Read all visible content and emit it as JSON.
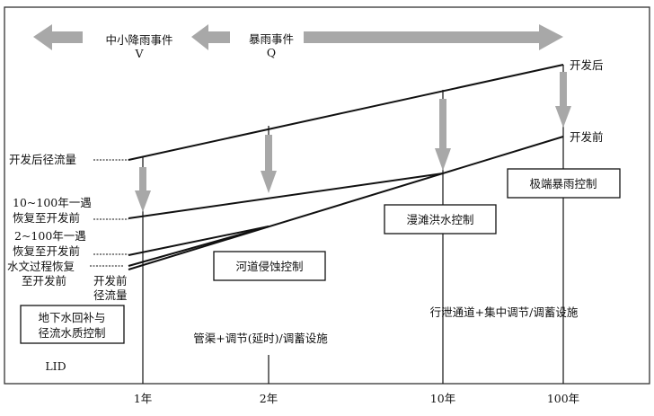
{
  "top_arrows": {
    "small_events": "中小降雨事件",
    "small_events_symbol": "V",
    "storm_events": "暴雨事件",
    "storm_events_symbol": "Q"
  },
  "curves": {
    "post_dev": "开发后",
    "pre_dev": "开发前"
  },
  "left_labels": {
    "post_runoff": "开发后径流量",
    "r10_100_line1": "10~100年一遇",
    "r10_100_line2": "恢复至开发前",
    "r2_100_line1": "2~100年一遇",
    "r2_100_line2": "恢复至开发前",
    "hydro_line1": "水文过程恢复",
    "hydro_line2": "至开发前",
    "pre_runoff_line1": "开发前",
    "pre_runoff_line2": "径流量"
  },
  "boxes": {
    "groundwater_line1": "地下水回补与",
    "groundwater_line2": "径流水质控制",
    "channel_erosion": "河道侵蚀控制",
    "overbank_flood": "漫滩洪水控制",
    "extreme_storm": "极端暴雨控制"
  },
  "measures": {
    "lid": "LID",
    "pipes": "管渠+调节(延时)/调蓄设施",
    "channels": "行泄通道+集中调节/调蓄设施"
  },
  "x_axis": {
    "ticks": [
      "1年",
      "2年",
      "10年",
      "100年"
    ]
  },
  "colors": {
    "arrow": "#a8a8a8",
    "line": "#111111"
  }
}
